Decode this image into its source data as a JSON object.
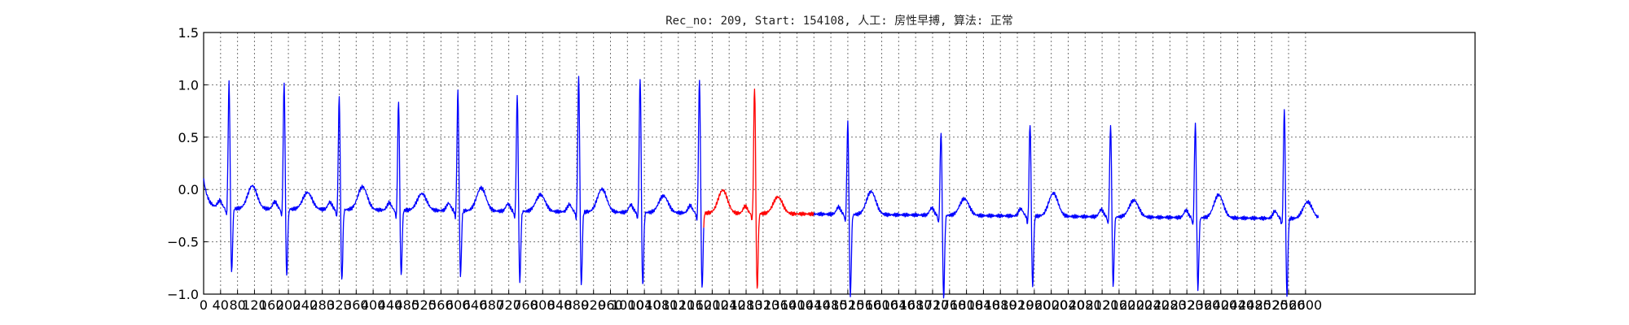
{
  "chart_data": {
    "type": "line",
    "title": "Rec_no: 209, Start: 154108, 人工: 房性早搏, 算法: 正常",
    "xlabel": "",
    "ylabel": "",
    "xlim": [
      0,
      3000
    ],
    "ylim": [
      -1.0,
      1.5
    ],
    "grid": true,
    "xticks": [
      0,
      40,
      80,
      120,
      160,
      200,
      240,
      280,
      320,
      360,
      400,
      440,
      480,
      520,
      560,
      600,
      640,
      680,
      720,
      760,
      800,
      840,
      880,
      920,
      960,
      1000,
      1040,
      1080,
      1120,
      1160,
      1200,
      1240,
      1280,
      1320,
      1360,
      1400,
      1440,
      1480,
      1520,
      1560,
      1600,
      1640,
      1680,
      1720,
      1760,
      1800,
      1840,
      1880,
      1920,
      1960,
      2000,
      2040,
      2080,
      2120,
      2160,
      2200,
      2240,
      2280,
      2320,
      2360,
      2400,
      2440,
      2480,
      2520,
      2560,
      2600
    ],
    "xtick_labels": [
      "0",
      "40",
      "80",
      "120",
      "160",
      "200",
      "240",
      "280",
      "320",
      "360",
      "400",
      "440",
      "480",
      "520",
      "560",
      "600",
      "640",
      "680",
      "720",
      "760",
      "800",
      "840",
      "880",
      "920",
      "960",
      "1000",
      "1040",
      "1080",
      "1120",
      "1160",
      "1200",
      "1240",
      "1280",
      "1320",
      "1360",
      "1400",
      "1440",
      "1480",
      "1520",
      "1560",
      "1600",
      "1640",
      "1680",
      "1720",
      "1760",
      "1800",
      "1840",
      "1880",
      "1920",
      "1960",
      "2000",
      "2040",
      "2080",
      "2120",
      "2160",
      "2200",
      "2240",
      "2280",
      "2320",
      "2360",
      "2400",
      "2440",
      "2480",
      "2520",
      "2560",
      "2600"
    ],
    "yticks": [
      -1.0,
      -0.5,
      0.0,
      0.5,
      1.0,
      1.5
    ],
    "ytick_labels": [
      "−1.0",
      "−0.5",
      "0.0",
      "0.5",
      "1.0",
      "1.5"
    ],
    "beats": [
      {
        "x": 60,
        "h": 1.02,
        "d": -0.68
      },
      {
        "x": 190,
        "h": 1.01,
        "d": -0.72
      },
      {
        "x": 320,
        "h": 0.9,
        "d": -0.76
      },
      {
        "x": 460,
        "h": 0.85,
        "d": -0.7
      },
      {
        "x": 600,
        "h": 0.97,
        "d": -0.7
      },
      {
        "x": 740,
        "h": 0.92,
        "d": -0.74
      },
      {
        "x": 885,
        "h": 1.12,
        "d": -0.78
      },
      {
        "x": 1030,
        "h": 1.1,
        "d": -0.78
      },
      {
        "x": 1170,
        "h": 1.1,
        "d": -0.8
      },
      {
        "x": 1300,
        "h": 1.03,
        "d": -0.8
      },
      {
        "x": 1520,
        "h": 0.7,
        "d": -0.85
      },
      {
        "x": 1740,
        "h": 0.62,
        "d": -0.87
      },
      {
        "x": 1950,
        "h": 0.7,
        "d": -0.75
      },
      {
        "x": 2140,
        "h": 0.7,
        "d": -0.72
      },
      {
        "x": 2340,
        "h": 0.72,
        "d": -0.75
      },
      {
        "x": 2550,
        "h": 0.86,
        "d": -0.82
      }
    ],
    "series": [
      {
        "color": "#0000ff",
        "x_range": [
          0,
          1180
        ],
        "segment": "before"
      },
      {
        "color": "#ff0000",
        "x_range": [
          1180,
          1440
        ],
        "segment": "highlighted beat"
      },
      {
        "color": "#0000ff",
        "x_range": [
          1440,
          2630
        ],
        "segment": "after"
      }
    ]
  }
}
